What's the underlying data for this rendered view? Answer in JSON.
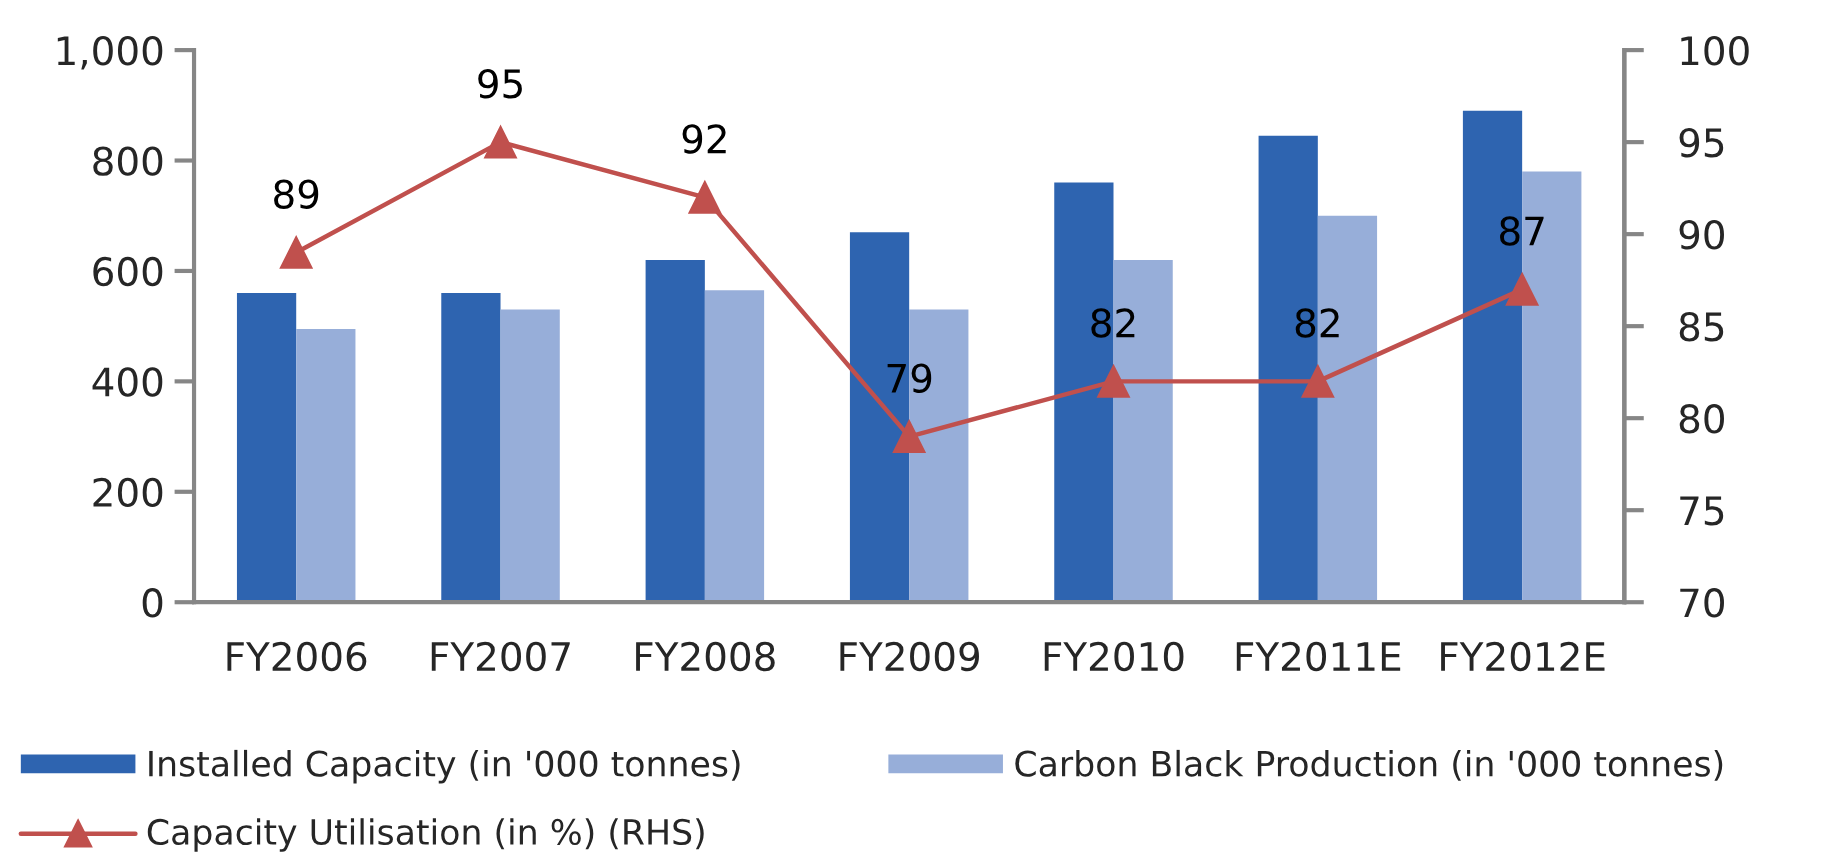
{
  "chart_data": {
    "type": "bar",
    "categories": [
      "FY2006",
      "FY2007",
      "FY2008",
      "FY2009",
      "FY2010",
      "FY2011E",
      "FY2012E"
    ],
    "series": [
      {
        "name": "Installed Capacity (in '000 tonnes)",
        "color": "#2e64b0",
        "values": [
          560,
          560,
          620,
          670,
          760,
          845,
          890
        ]
      },
      {
        "name": "Carbon Black Production (in '000 tonnes)",
        "color": "#97aed9",
        "values": [
          495,
          530,
          565,
          530,
          620,
          700,
          780
        ]
      },
      {
        "name": "Capacity Utilisation (in %) (RHS)",
        "type": "line",
        "axis": "y2",
        "color": "#c0504d",
        "marker": "triangle",
        "data_labels": true,
        "values": [
          89,
          95,
          92,
          79,
          82,
          82,
          87
        ]
      }
    ],
    "ylim": [
      0,
      1000
    ],
    "yticks": [
      0,
      200,
      400,
      600,
      800,
      {
        "value": 1000,
        "label": "1,000"
      }
    ],
    "y2lim": [
      70,
      100
    ],
    "y2ticks": [
      70,
      75,
      80,
      85,
      90,
      95,
      100
    ],
    "legend": "bottom",
    "grid": false
  }
}
